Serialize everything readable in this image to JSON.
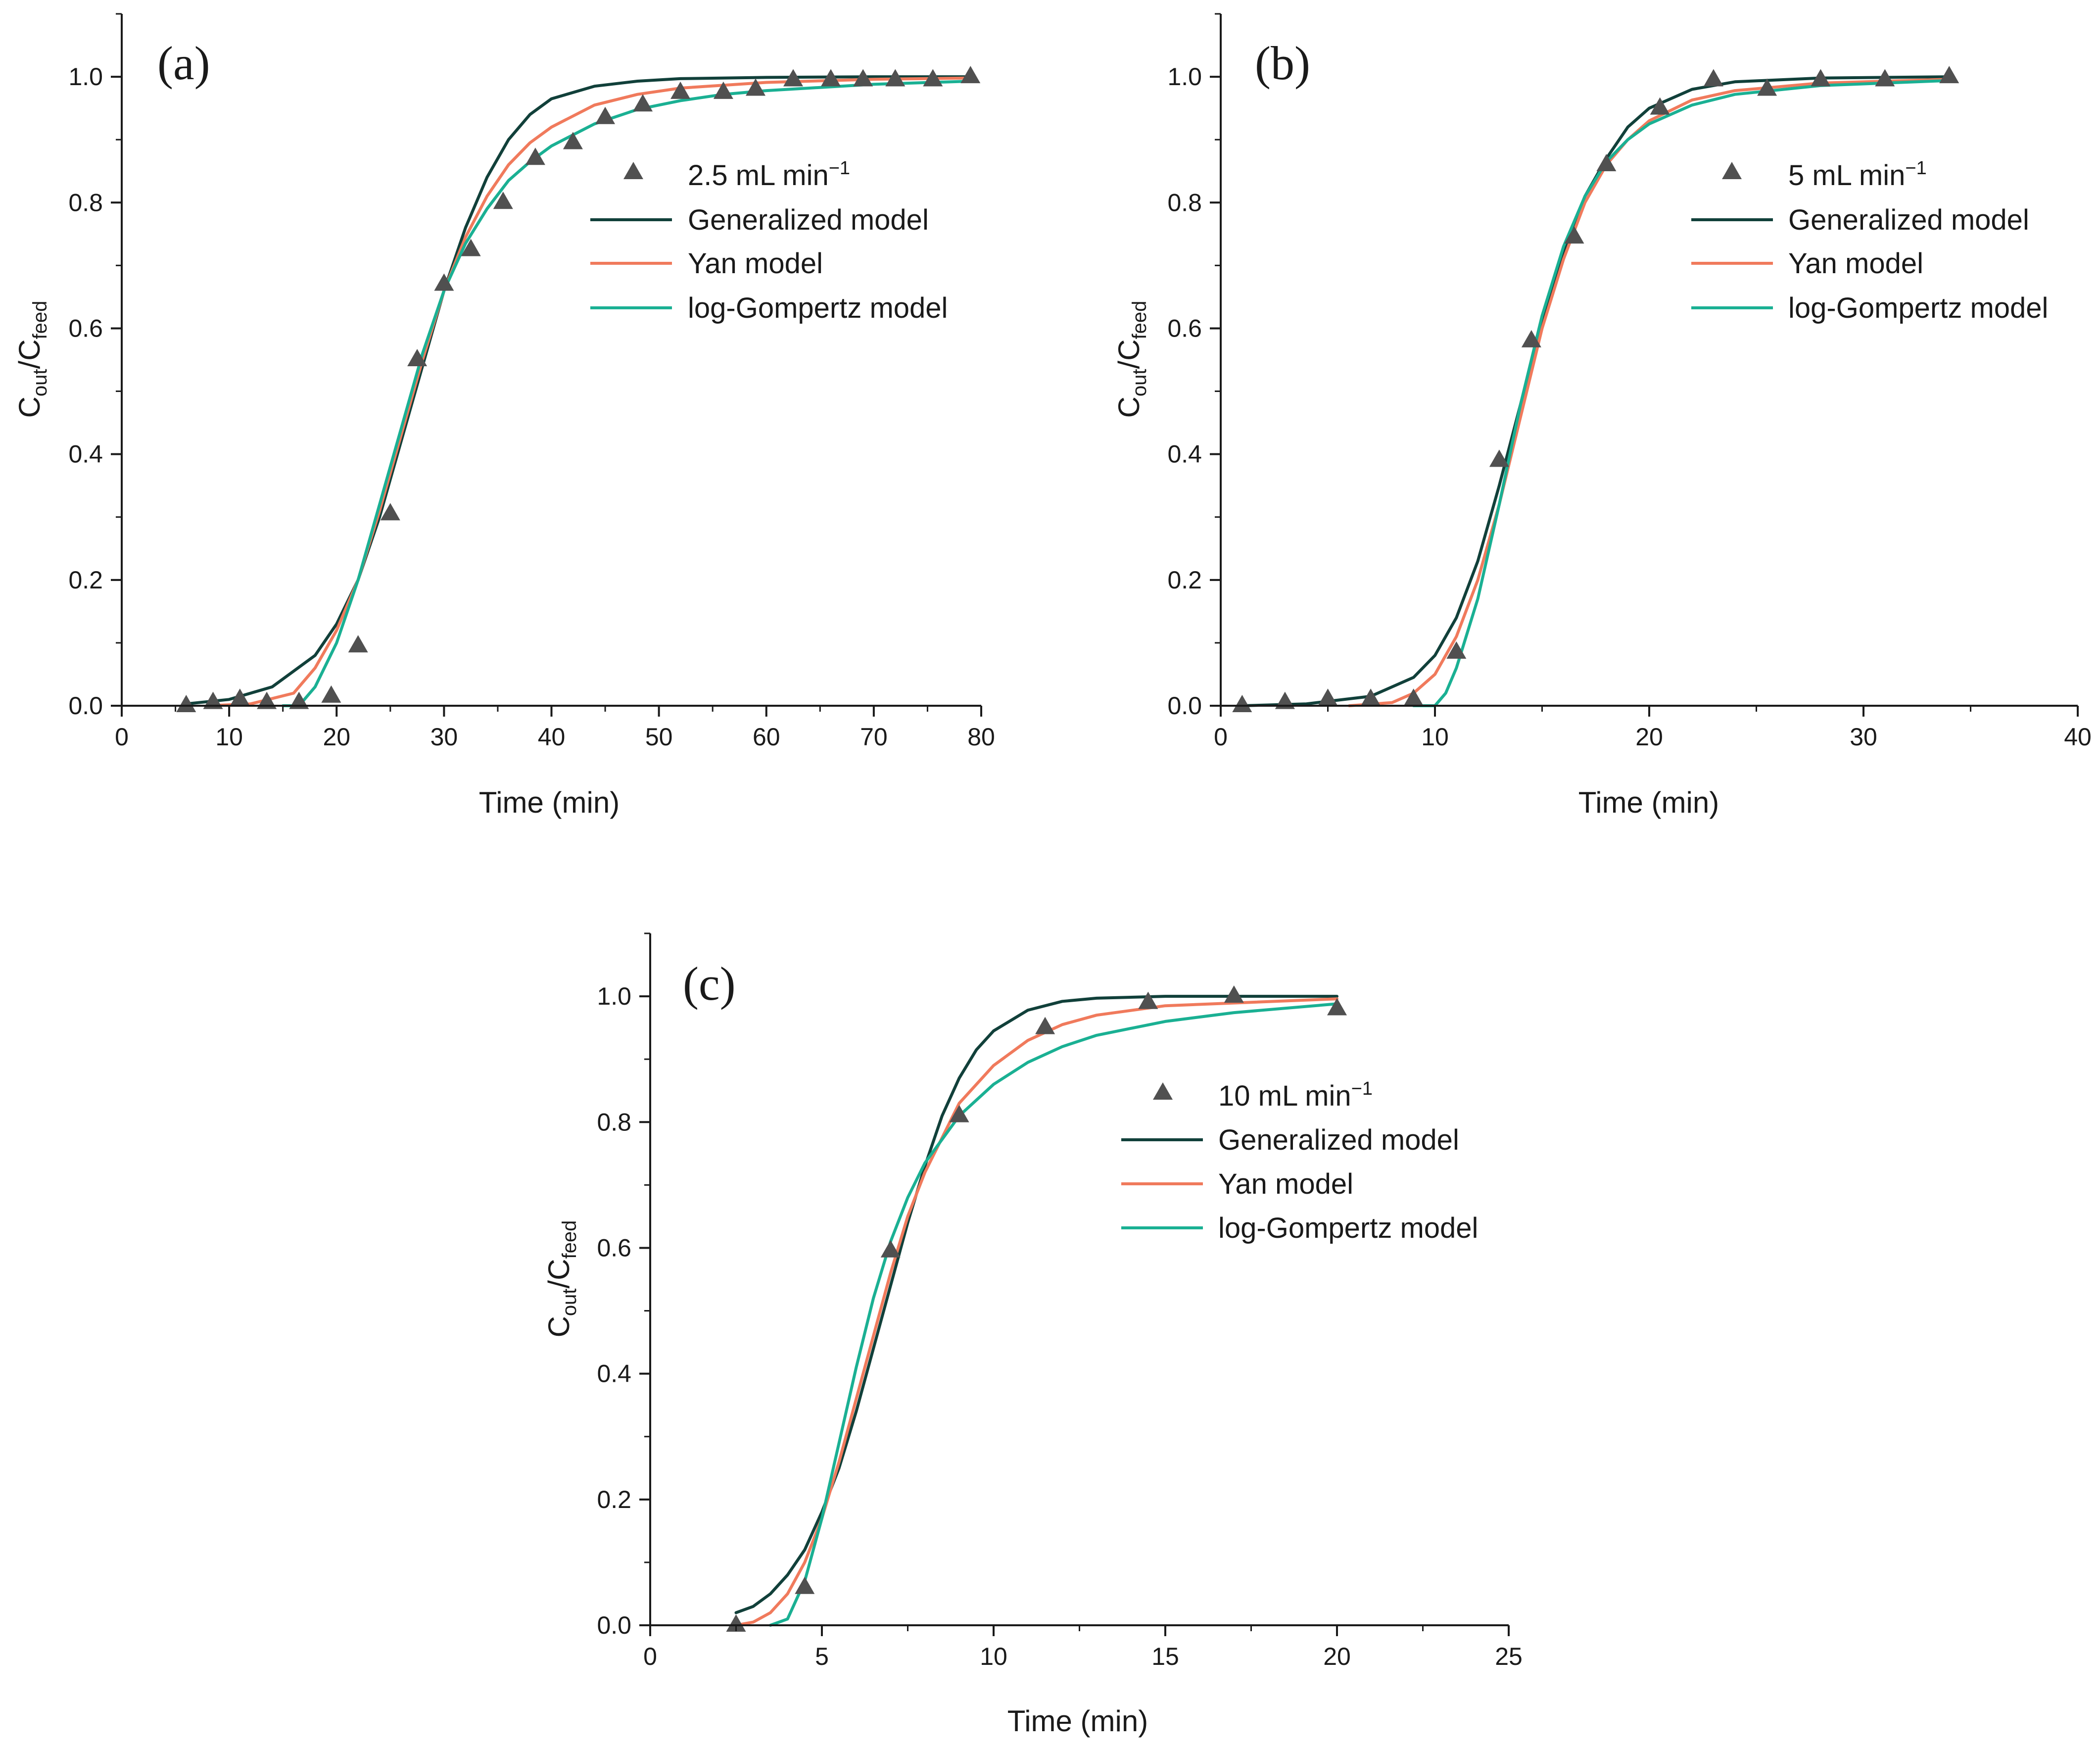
{
  "chart_data": [
    {
      "type": "line",
      "panel_label": "(a)",
      "xlabel": "Time (min)",
      "ylabel": {
        "c1": "C",
        "sub1": "out",
        "slash": "/C",
        "sub2": "feed"
      },
      "xlim": [
        0,
        80
      ],
      "ylim": [
        0,
        1.1
      ],
      "xticks": [
        0,
        10,
        20,
        30,
        40,
        50,
        60,
        70,
        80
      ],
      "yticks": [
        0.0,
        0.2,
        0.4,
        0.6,
        0.8,
        1.0
      ],
      "xtick_labels": [
        "0",
        "10",
        "20",
        "30",
        "40",
        "50",
        "60",
        "70",
        "80"
      ],
      "ytick_labels": [
        "0.0",
        "0.2",
        "0.4",
        "0.6",
        "0.8",
        "1.0"
      ],
      "legend": {
        "scatter_label": {
          "main": "2.5 mL min",
          "sup": "−1"
        },
        "line_labels": [
          "Generalized model",
          "Yan model",
          "log-Gompertz model"
        ]
      },
      "scatter": {
        "x": [
          6,
          8.5,
          11,
          13.5,
          16.5,
          19.5,
          22,
          25,
          27.5,
          30,
          32.5,
          35.5,
          38.5,
          42,
          45,
          48.5,
          52,
          56,
          59,
          62.5,
          66,
          69,
          72,
          75.5,
          79
        ],
        "y": [
          0.0,
          0.005,
          0.01,
          0.005,
          0.005,
          0.015,
          0.095,
          0.305,
          0.55,
          0.67,
          0.725,
          0.8,
          0.87,
          0.895,
          0.935,
          0.955,
          0.975,
          0.975,
          0.98,
          0.995,
          0.995,
          0.995,
          0.995,
          0.995,
          1.0
        ]
      },
      "series": [
        {
          "name": "Generalized model",
          "x": [
            6,
            10,
            14,
            18,
            20,
            22,
            24,
            26,
            28,
            30,
            32,
            34,
            36,
            38,
            40,
            44,
            48,
            52,
            60,
            70,
            79
          ],
          "y": [
            0.003,
            0.01,
            0.03,
            0.08,
            0.13,
            0.2,
            0.3,
            0.42,
            0.54,
            0.66,
            0.76,
            0.84,
            0.9,
            0.94,
            0.965,
            0.985,
            0.993,
            0.997,
            0.999,
            1.0,
            1.0
          ]
        },
        {
          "name": "Yan model",
          "x": [
            8,
            12,
            16,
            18,
            20,
            22,
            24,
            26,
            28,
            30,
            32,
            34,
            36,
            38,
            40,
            44,
            48,
            52,
            60,
            70,
            79
          ],
          "y": [
            0.0,
            0.003,
            0.02,
            0.06,
            0.12,
            0.2,
            0.31,
            0.43,
            0.55,
            0.66,
            0.745,
            0.81,
            0.86,
            0.895,
            0.92,
            0.955,
            0.972,
            0.982,
            0.991,
            0.996,
            0.998
          ]
        },
        {
          "name": "log-Gompertz model",
          "x": [
            15,
            16.5,
            18,
            20,
            22,
            24,
            26,
            28,
            30,
            32,
            34,
            36,
            38,
            40,
            44,
            48,
            52,
            56,
            60,
            70,
            79
          ],
          "y": [
            0.0,
            0.0,
            0.03,
            0.1,
            0.2,
            0.32,
            0.44,
            0.56,
            0.66,
            0.735,
            0.79,
            0.835,
            0.865,
            0.89,
            0.925,
            0.948,
            0.962,
            0.972,
            0.978,
            0.988,
            0.993
          ]
        }
      ]
    },
    {
      "type": "line",
      "panel_label": "(b)",
      "xlabel": "Time (min)",
      "ylabel": {
        "c1": "C",
        "sub1": "out",
        "slash": "/C",
        "sub2": "feed"
      },
      "xlim": [
        0,
        40
      ],
      "ylim": [
        0,
        1.1
      ],
      "xticks": [
        0,
        10,
        20,
        30,
        40
      ],
      "yticks": [
        0.0,
        0.2,
        0.4,
        0.6,
        0.8,
        1.0
      ],
      "xtick_labels": [
        "0",
        "10",
        "20",
        "30",
        "40"
      ],
      "ytick_labels": [
        "0.0",
        "0.2",
        "0.4",
        "0.6",
        "0.8",
        "1.0"
      ],
      "legend": {
        "scatter_label": {
          "main": "5 mL min",
          "sup": "−1"
        },
        "line_labels": [
          "Generalized model",
          "Yan model",
          "log-Gompertz model"
        ]
      },
      "scatter": {
        "x": [
          1,
          3,
          5,
          7,
          9,
          11,
          13,
          14.5,
          16.5,
          18,
          20.5,
          23,
          25.5,
          28,
          31,
          34
        ],
        "y": [
          0.0,
          0.005,
          0.01,
          0.01,
          0.01,
          0.085,
          0.39,
          0.58,
          0.745,
          0.86,
          0.95,
          0.995,
          0.98,
          0.995,
          0.995,
          1.0
        ]
      },
      "series": [
        {
          "name": "Generalized model",
          "x": [
            1,
            4,
            7,
            9,
            10,
            11,
            12,
            13,
            14,
            15,
            16,
            17,
            18,
            19,
            20,
            22,
            24,
            28,
            34
          ],
          "y": [
            0.0,
            0.003,
            0.015,
            0.045,
            0.08,
            0.14,
            0.23,
            0.35,
            0.48,
            0.61,
            0.72,
            0.81,
            0.87,
            0.92,
            0.95,
            0.98,
            0.992,
            0.998,
            1.0
          ]
        },
        {
          "name": "Yan model",
          "x": [
            6,
            8,
            9,
            10,
            11,
            12,
            13,
            14,
            15,
            16,
            17,
            18,
            19,
            20,
            22,
            24,
            28,
            34
          ],
          "y": [
            0.0,
            0.005,
            0.02,
            0.05,
            0.11,
            0.2,
            0.32,
            0.46,
            0.6,
            0.71,
            0.8,
            0.86,
            0.9,
            0.93,
            0.963,
            0.978,
            0.99,
            0.996
          ]
        },
        {
          "name": "log-Gompertz model",
          "x": [
            9,
            10,
            10.5,
            11,
            12,
            13,
            14,
            15,
            16,
            17,
            18,
            19,
            20,
            22,
            24,
            28,
            34
          ],
          "y": [
            0.0,
            0.0,
            0.02,
            0.06,
            0.17,
            0.32,
            0.48,
            0.62,
            0.73,
            0.81,
            0.865,
            0.9,
            0.925,
            0.955,
            0.972,
            0.986,
            0.994
          ]
        }
      ]
    },
    {
      "type": "line",
      "panel_label": "(c)",
      "xlabel": "Time (min)",
      "ylabel": {
        "c1": "C",
        "sub1": "out",
        "slash": "/C",
        "sub2": "feed"
      },
      "xlim": [
        0,
        25
      ],
      "ylim": [
        0,
        1.1
      ],
      "xticks": [
        0,
        5,
        10,
        15,
        20,
        25
      ],
      "yticks": [
        0.0,
        0.2,
        0.4,
        0.6,
        0.8,
        1.0
      ],
      "xtick_labels": [
        "0",
        "5",
        "10",
        "15",
        "20",
        "25"
      ],
      "ytick_labels": [
        "0.0",
        "0.2",
        "0.4",
        "0.6",
        "0.8",
        "1.0"
      ],
      "legend": {
        "scatter_label": {
          "main": "10 mL min",
          "sup": "−1"
        },
        "line_labels": [
          "Generalized model",
          "Yan model",
          "log-Gompertz model"
        ]
      },
      "scatter": {
        "x": [
          2.5,
          4.5,
          7,
          9,
          11.5,
          14.5,
          17,
          20
        ],
        "y": [
          0.0,
          0.06,
          0.595,
          0.81,
          0.95,
          0.99,
          1.0,
          0.98
        ]
      },
      "series": [
        {
          "name": "Generalized model",
          "x": [
            2.5,
            3,
            3.5,
            4,
            4.5,
            5,
            5.5,
            6,
            6.5,
            7,
            7.5,
            8,
            8.5,
            9,
            9.5,
            10,
            11,
            12,
            13,
            15,
            20
          ],
          "y": [
            0.02,
            0.03,
            0.05,
            0.08,
            0.12,
            0.18,
            0.25,
            0.34,
            0.44,
            0.54,
            0.64,
            0.73,
            0.81,
            0.87,
            0.915,
            0.945,
            0.978,
            0.992,
            0.997,
            1.0,
            1.0
          ]
        },
        {
          "name": "Yan model",
          "x": [
            2.5,
            3,
            3.5,
            4,
            4.5,
            5,
            5.5,
            6,
            6.5,
            7,
            7.5,
            8,
            9,
            10,
            11,
            12,
            13,
            15,
            20
          ],
          "y": [
            0.0,
            0.005,
            0.02,
            0.05,
            0.1,
            0.17,
            0.26,
            0.36,
            0.46,
            0.56,
            0.65,
            0.72,
            0.83,
            0.89,
            0.93,
            0.955,
            0.97,
            0.985,
            0.996
          ]
        },
        {
          "name": "log-Gompertz model",
          "x": [
            3.5,
            4,
            4.5,
            5,
            5.5,
            6,
            6.5,
            7,
            7.5,
            8,
            9,
            10,
            11,
            12,
            13,
            15,
            17,
            20
          ],
          "y": [
            0.0,
            0.01,
            0.07,
            0.17,
            0.29,
            0.41,
            0.52,
            0.61,
            0.68,
            0.735,
            0.81,
            0.86,
            0.895,
            0.92,
            0.938,
            0.96,
            0.974,
            0.988
          ]
        }
      ]
    }
  ],
  "colors": {
    "axis": "#1a1a1a",
    "marker": "#505050",
    "generalized": "#11403a",
    "yan": "#f07a5c",
    "log_gompertz": "#1ab093"
  }
}
